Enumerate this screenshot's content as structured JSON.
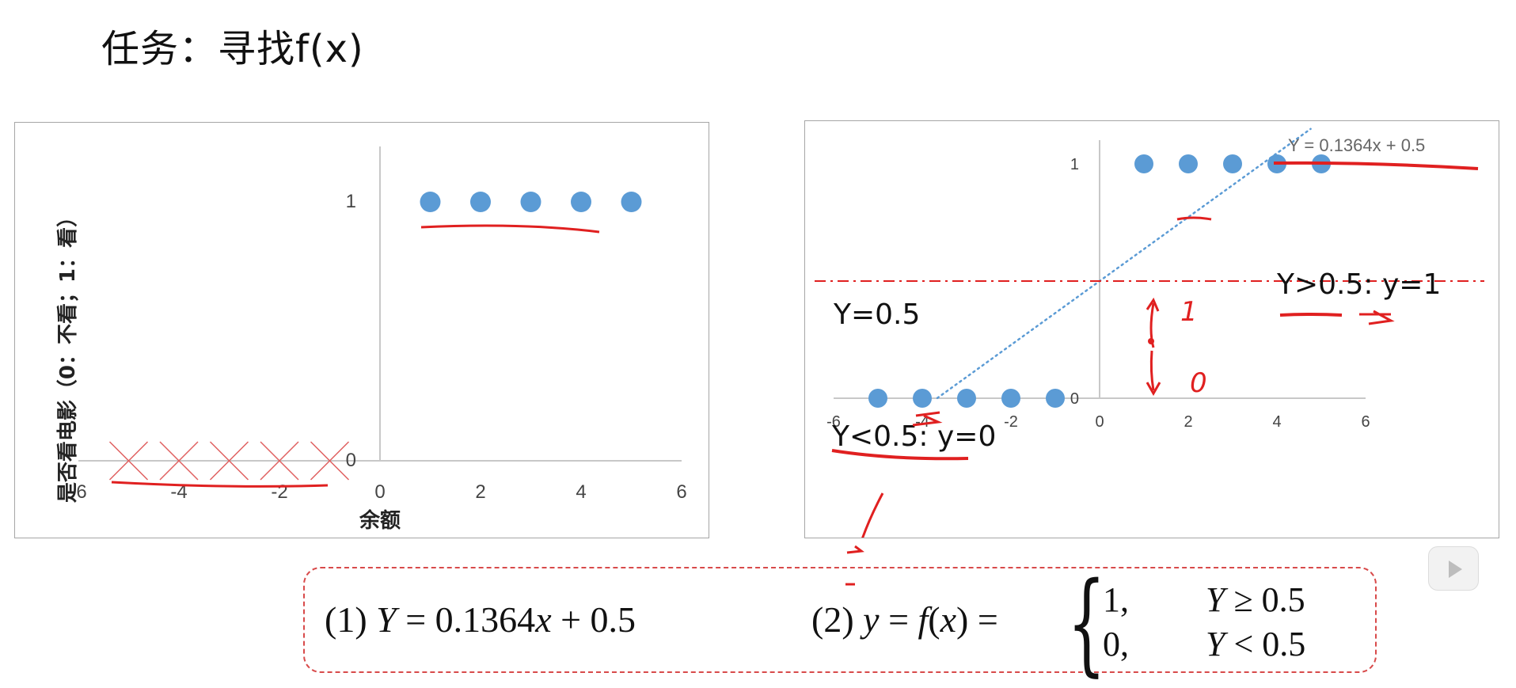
{
  "slide": {
    "title": "任务：寻找f(x)"
  },
  "chart_data": [
    {
      "type": "scatter",
      "title": "",
      "xlabel": "余额",
      "ylabel": "是否看电影（0：不看；1：看）",
      "xlim": [
        -6,
        6
      ],
      "ylim": [
        0,
        1.2
      ],
      "x_ticks": [
        "-6",
        "-4",
        "-2",
        "0",
        "2",
        "4",
        "6"
      ],
      "y_ticks": [
        "0",
        "1"
      ],
      "grid": false,
      "legend": "none",
      "series": [
        {
          "marker": "circle",
          "color": "#5b9bd5",
          "x": [
            1,
            2,
            3,
            4,
            5
          ],
          "y": [
            1,
            1,
            1,
            1,
            1
          ]
        },
        {
          "marker": "cross",
          "color": "#e06060",
          "x": [
            -5,
            -4,
            -3,
            -2,
            -1
          ],
          "y": [
            0,
            0,
            0,
            0,
            0
          ]
        }
      ]
    },
    {
      "type": "scatter",
      "title": "",
      "xlim": [
        -6,
        6
      ],
      "ylim": [
        0,
        1.2
      ],
      "x_ticks": [
        "-6",
        "-4",
        "-2",
        "0",
        "2",
        "4",
        "6"
      ],
      "y_ticks": [
        "0",
        "1"
      ],
      "grid": false,
      "legend": "none",
      "series": [
        {
          "marker": "circle",
          "color": "#5b9bd5",
          "x": [
            1,
            2,
            3,
            4,
            5
          ],
          "y": [
            1,
            1,
            1,
            1,
            1
          ]
        },
        {
          "marker": "circle",
          "color": "#5b9bd5",
          "x": [
            -5,
            -4,
            -3,
            -2,
            -1
          ],
          "y": [
            0,
            0,
            0,
            0,
            0
          ]
        }
      ],
      "trendline": {
        "label": "Y = 0.1364x + 0.5",
        "slope": 0.1364,
        "intercept": 0.5,
        "color": "#5b9bd5"
      },
      "threshold": {
        "y": 0.5,
        "color": "#e02020"
      },
      "annotations": {
        "threshold_label": "Y=0.5",
        "upper_rule": "Y>0.5: y=1",
        "lower_rule": "Y<0.5: y=0",
        "ink_one": "1",
        "ink_zero": "0"
      }
    }
  ],
  "formula": {
    "f1_prefix": "(1) ",
    "f1_lhs": "Y",
    "f1_rhs": " = 0.1364",
    "f1_var": "x",
    "f1_tail": " + 0.5",
    "f2_prefix": "(2) ",
    "f2_y": "y",
    "f2_eq": " = ",
    "f2_f": "f",
    "f2_args_open": "(",
    "f2_x": "x",
    "f2_args_close": ") =",
    "case1_val": "1,",
    "case1_var": "Y",
    "case1_cond": " ≥ 0.5",
    "case2_val": "0,",
    "case2_var": "Y",
    "case2_cond": " < 0.5",
    "brace": "{"
  },
  "controls": {
    "play_icon": "play-icon"
  },
  "colors": {
    "marker": "#5b9bd5",
    "ink": "#e02020",
    "frame": "#a6a6a6"
  }
}
